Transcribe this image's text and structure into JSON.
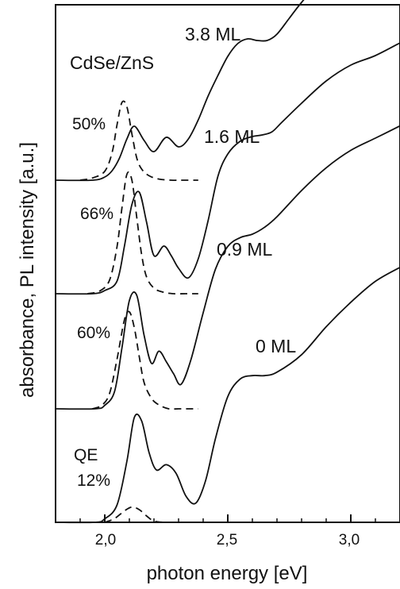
{
  "chart_data": {
    "type": "line",
    "title": "CdSe/ZnS",
    "xlabel": "photon energy [eV]",
    "ylabel": "absorbance, PL intensity [a.u.]",
    "xlim": [
      1.8,
      3.2
    ],
    "x_ticks": [
      {
        "value": 2.0,
        "label": "2,0"
      },
      {
        "value": 2.5,
        "label": "2,5"
      },
      {
        "value": 3.0,
        "label": "3,0"
      }
    ],
    "x_minor_ticks": [
      1.9,
      2.1,
      2.2,
      2.3,
      2.4,
      2.6,
      2.7,
      2.8,
      2.9,
      3.1
    ],
    "grid": false,
    "legend": "none",
    "series": [
      {
        "name": "3.8 ML",
        "role": "absorbance",
        "x": [
          1.8,
          1.95,
          2.0,
          2.03,
          2.06,
          2.09,
          2.12,
          2.16,
          2.2,
          2.25,
          2.3,
          2.34,
          2.38,
          2.42,
          2.46,
          2.5,
          2.54,
          2.58,
          2.62,
          2.66,
          2.7,
          2.75,
          2.8,
          2.9,
          3.0,
          3.1,
          3.2
        ],
        "y": [
          0.0,
          0.0,
          0.02,
          0.06,
          0.14,
          0.26,
          0.34,
          0.25,
          0.18,
          0.27,
          0.21,
          0.26,
          0.38,
          0.53,
          0.66,
          0.78,
          0.86,
          0.89,
          0.88,
          0.88,
          0.92,
          1.02,
          1.12,
          1.3,
          1.43,
          1.52,
          1.6
        ]
      },
      {
        "name": "50%",
        "role": "PL",
        "x": [
          1.9,
          1.95,
          2.0,
          2.03,
          2.05,
          2.07,
          2.09,
          2.11,
          2.13,
          2.15,
          2.18,
          2.22,
          2.27,
          2.32,
          2.38
        ],
        "y": [
          0.0,
          0.02,
          0.08,
          0.25,
          0.5,
          0.7,
          0.66,
          0.42,
          0.2,
          0.1,
          0.04,
          0.01,
          0.0,
          0.0,
          0.0
        ]
      },
      {
        "name": "1.6 ML",
        "role": "absorbance",
        "x": [
          1.8,
          1.95,
          2.0,
          2.05,
          2.08,
          2.11,
          2.14,
          2.17,
          2.2,
          2.24,
          2.27,
          2.3,
          2.34,
          2.38,
          2.42,
          2.46,
          2.5,
          2.55,
          2.6,
          2.64,
          2.68,
          2.72,
          2.8,
          2.9,
          3.0,
          3.1,
          3.2
        ],
        "y": [
          0.0,
          0.0,
          0.02,
          0.08,
          0.3,
          0.56,
          0.64,
          0.45,
          0.24,
          0.3,
          0.24,
          0.16,
          0.1,
          0.22,
          0.46,
          0.74,
          0.88,
          0.96,
          0.99,
          1.0,
          1.02,
          1.08,
          1.2,
          1.34,
          1.44,
          1.5,
          1.58
        ]
      },
      {
        "name": "66%",
        "role": "PL",
        "x": [
          1.93,
          1.98,
          2.02,
          2.05,
          2.07,
          2.09,
          2.11,
          2.13,
          2.15,
          2.17,
          2.2,
          2.24,
          2.28,
          2.33,
          2.38
        ],
        "y": [
          0.0,
          0.02,
          0.1,
          0.34,
          0.62,
          0.86,
          0.82,
          0.55,
          0.28,
          0.12,
          0.04,
          0.01,
          0.0,
          0.0,
          0.0
        ]
      },
      {
        "name": "0.9 ML",
        "role": "absorbance",
        "x": [
          1.8,
          1.96,
          2.0,
          2.04,
          2.07,
          2.1,
          2.13,
          2.16,
          2.19,
          2.22,
          2.25,
          2.28,
          2.31,
          2.35,
          2.4,
          2.45,
          2.5,
          2.55,
          2.6,
          2.65,
          2.7,
          2.8,
          2.9,
          3.0,
          3.1,
          3.2
        ],
        "y": [
          0.0,
          0.0,
          0.02,
          0.1,
          0.35,
          0.62,
          0.65,
          0.42,
          0.26,
          0.33,
          0.27,
          0.2,
          0.14,
          0.28,
          0.55,
          0.8,
          0.93,
          0.98,
          1.0,
          1.04,
          1.1,
          1.25,
          1.38,
          1.48,
          1.55,
          1.62
        ]
      },
      {
        "name": "60%",
        "role": "PL",
        "x": [
          1.95,
          1.99,
          2.02,
          2.05,
          2.08,
          2.1,
          2.12,
          2.14,
          2.16,
          2.19,
          2.22,
          2.26,
          2.3,
          2.34,
          2.38
        ],
        "y": [
          0.0,
          0.03,
          0.12,
          0.38,
          0.68,
          0.74,
          0.62,
          0.4,
          0.2,
          0.08,
          0.03,
          0.0,
          0.0,
          0.0,
          0.0
        ]
      },
      {
        "name": "0 ML",
        "role": "absorbance",
        "x": [
          1.8,
          1.96,
          2.0,
          2.05,
          2.09,
          2.12,
          2.15,
          2.18,
          2.21,
          2.25,
          2.29,
          2.33,
          2.37,
          2.41,
          2.45,
          2.5,
          2.55,
          2.6,
          2.65,
          2.7,
          2.8,
          2.9,
          3.0,
          3.1,
          3.2
        ],
        "y": [
          0.0,
          0.0,
          0.02,
          0.1,
          0.35,
          0.6,
          0.58,
          0.4,
          0.3,
          0.33,
          0.28,
          0.15,
          0.11,
          0.24,
          0.48,
          0.72,
          0.82,
          0.84,
          0.84,
          0.86,
          0.96,
          1.12,
          1.26,
          1.38,
          1.46
        ]
      },
      {
        "name": "12%",
        "role": "PL",
        "x": [
          2.0,
          2.04,
          2.08,
          2.11,
          2.14,
          2.17,
          2.2,
          2.24
        ],
        "y": [
          0.0,
          0.03,
          0.09,
          0.12,
          0.1,
          0.05,
          0.01,
          0.0
        ]
      }
    ],
    "annotations": [
      "3.8 ML",
      "1.6 ML",
      "0.9 ML",
      "0 ML",
      "50%",
      "66%",
      "60%",
      "QE",
      "12%"
    ]
  }
}
